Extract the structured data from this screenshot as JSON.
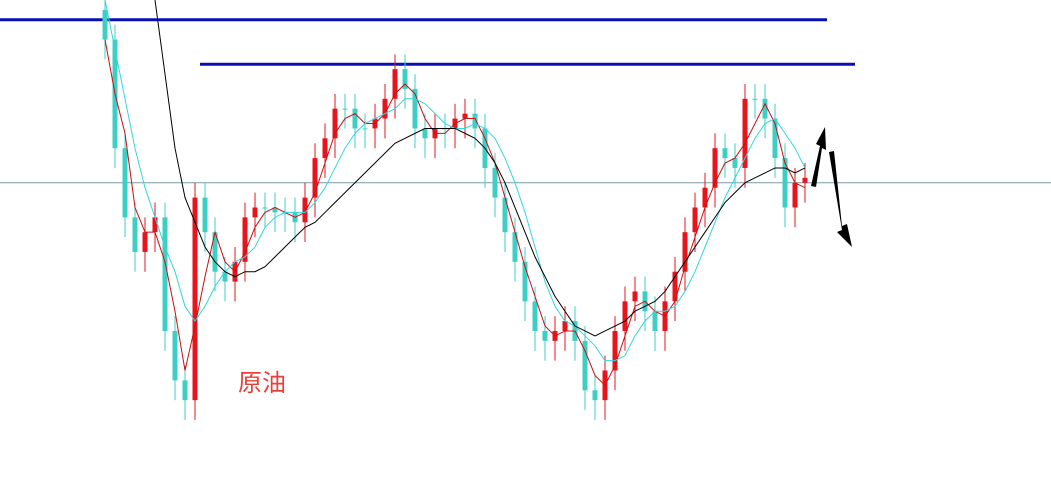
{
  "chart_data": {
    "type": "candlestick",
    "annotation": "原油",
    "ylim": [
      0,
      100
    ],
    "up_color": "#e8141c",
    "down_color": "#3ccfc6",
    "open": [
      98,
      92,
      70,
      56,
      49,
      53,
      56,
      33,
      23,
      19,
      60,
      53,
      45,
      43,
      47,
      56,
      58,
      58,
      57,
      57,
      55,
      60,
      68,
      72,
      78,
      78,
      74,
      74,
      76,
      80,
      86,
      82,
      74,
      72,
      74,
      74,
      76,
      77,
      74,
      66,
      60,
      53,
      47,
      39,
      33,
      31,
      33,
      35,
      31,
      21,
      19,
      25,
      33,
      39,
      41,
      37,
      33,
      39,
      45,
      53,
      58,
      62,
      70,
      68,
      66,
      80,
      80,
      76,
      68,
      58,
      63
    ],
    "high": [
      100,
      95,
      73,
      59,
      56,
      59,
      59,
      36,
      26,
      63,
      63,
      56,
      48,
      50,
      59,
      61,
      61,
      61,
      60,
      60,
      63,
      71,
      75,
      81,
      81,
      81,
      77,
      79,
      83,
      89,
      89,
      85,
      77,
      77,
      77,
      79,
      80,
      80,
      77,
      69,
      63,
      56,
      50,
      42,
      36,
      36,
      38,
      38,
      34,
      24,
      28,
      36,
      42,
      44,
      44,
      40,
      42,
      48,
      56,
      61,
      65,
      73,
      73,
      71,
      83,
      83,
      83,
      79,
      71,
      66,
      67
    ],
    "low": [
      88,
      66,
      52,
      45,
      45,
      49,
      29,
      19,
      15,
      15,
      49,
      41,
      39,
      39,
      43,
      52,
      54,
      53,
      53,
      51,
      51,
      56,
      64,
      68,
      74,
      70,
      70,
      70,
      72,
      76,
      78,
      70,
      68,
      68,
      70,
      70,
      72,
      70,
      62,
      56,
      49,
      43,
      35,
      29,
      27,
      27,
      29,
      27,
      17,
      15,
      15,
      21,
      29,
      35,
      33,
      29,
      29,
      35,
      41,
      49,
      54,
      58,
      64,
      62,
      62,
      76,
      72,
      64,
      54,
      54,
      59
    ],
    "close": [
      92,
      70,
      56,
      49,
      53,
      56,
      33,
      23,
      19,
      60,
      53,
      45,
      43,
      47,
      56,
      58,
      58,
      57,
      57,
      55,
      60,
      68,
      72,
      78,
      78,
      74,
      74,
      76,
      80,
      86,
      82,
      74,
      72,
      74,
      74,
      76,
      77,
      74,
      66,
      60,
      53,
      47,
      39,
      33,
      31,
      33,
      35,
      31,
      21,
      19,
      25,
      33,
      39,
      41,
      37,
      33,
      39,
      45,
      53,
      58,
      62,
      70,
      68,
      66,
      80,
      80,
      76,
      68,
      58,
      63,
      64
    ],
    "series": [
      {
        "color": "#c81010",
        "values": [
          92,
          81,
          73,
          58,
          53,
          53,
          47,
          37,
          25,
          34,
          44,
          53,
          47,
          45,
          49,
          54,
          57,
          58,
          57,
          56,
          57,
          61,
          67,
          73,
          76,
          77,
          75,
          75,
          77,
          81,
          83,
          81,
          76,
          73,
          73,
          75,
          76,
          76,
          72,
          67,
          60,
          53,
          46,
          40,
          34,
          32,
          33,
          33,
          29,
          24,
          22,
          26,
          32,
          38,
          39,
          37,
          36,
          39,
          46,
          52,
          58,
          63,
          67,
          68,
          71,
          75,
          79,
          75,
          67,
          63,
          62
        ]
      },
      {
        "color": "#30d8e0",
        "values": [
          100,
          90,
          80,
          70,
          62,
          56,
          50,
          45,
          38,
          35,
          38,
          42,
          45,
          47,
          48,
          50,
          54,
          56,
          57,
          57,
          57,
          59,
          62,
          66,
          70,
          73,
          75,
          76,
          77,
          78,
          80,
          80,
          79,
          77,
          75,
          74,
          74,
          75,
          74,
          72,
          68,
          63,
          57,
          50,
          43,
          38,
          35,
          34,
          32,
          30,
          27,
          27,
          28,
          32,
          35,
          37,
          37,
          38,
          41,
          45,
          50,
          55,
          60,
          64,
          68,
          72,
          75,
          76,
          73,
          70,
          66
        ]
      },
      {
        "color": "#000000",
        "values": [
          null,
          null,
          null,
          null,
          null,
          100,
          85,
          70,
          60,
          55,
          50,
          47,
          45,
          44,
          45,
          45,
          46,
          48,
          50,
          52,
          54,
          55,
          57,
          59,
          61,
          63,
          65,
          67,
          69,
          71,
          72,
          73,
          74,
          74,
          74,
          74,
          73,
          72,
          70,
          67,
          63,
          58,
          53,
          48,
          44,
          40,
          37,
          34,
          33,
          32,
          33,
          34,
          35,
          37,
          38,
          39,
          41,
          44,
          47,
          50,
          53,
          56,
          59,
          61,
          63,
          64,
          65,
          66,
          66,
          65,
          66
        ]
      }
    ],
    "hlines": [
      {
        "value": 96,
        "color": "#0a10b0"
      },
      {
        "value": 87,
        "color": "#0a10b0"
      },
      {
        "value": 63,
        "color": "#7a9aa8"
      }
    ]
  }
}
